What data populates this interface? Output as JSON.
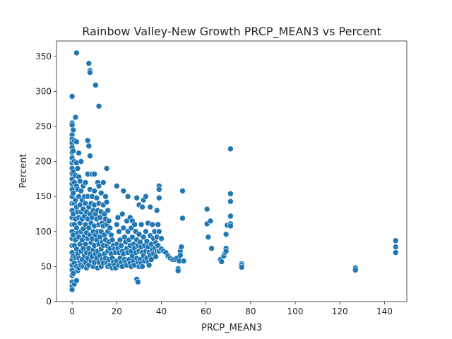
{
  "chart_data": {
    "type": "scatter",
    "title": "Rainbow Valley-New Growth PRCP_MEAN3 vs Percent",
    "xlabel": "PRCP_MEAN3",
    "ylabel": "Percent",
    "xlim": [
      -7,
      150
    ],
    "ylim": [
      0,
      372
    ],
    "xticks": [
      0,
      20,
      40,
      60,
      80,
      100,
      120,
      140
    ],
    "yticks": [
      0,
      50,
      100,
      150,
      200,
      250,
      300,
      350
    ],
    "grid": false,
    "marker_color": "#1f77b4",
    "marker_edge": "#ffffff",
    "points": [
      [
        2,
        355
      ],
      [
        7.5,
        340
      ],
      [
        8,
        330
      ],
      [
        8,
        327
      ],
      [
        10.5,
        309
      ],
      [
        0,
        293
      ],
      [
        12,
        279
      ],
      [
        1.5,
        263
      ],
      [
        0,
        255
      ],
      [
        0,
        252
      ],
      [
        0,
        238
      ],
      [
        0,
        232
      ],
      [
        0,
        226
      ],
      [
        0,
        220
      ],
      [
        0,
        213
      ],
      [
        0,
        205
      ],
      [
        0,
        198
      ],
      [
        0,
        190
      ],
      [
        0,
        183
      ],
      [
        0,
        175
      ],
      [
        0,
        168
      ],
      [
        0,
        160
      ],
      [
        0,
        150
      ],
      [
        0,
        140
      ],
      [
        0,
        130
      ],
      [
        0,
        120
      ],
      [
        0,
        110
      ],
      [
        0,
        100
      ],
      [
        0,
        90
      ],
      [
        0,
        80
      ],
      [
        0,
        70
      ],
      [
        0,
        60
      ],
      [
        0,
        52
      ],
      [
        0,
        45
      ],
      [
        0,
        37
      ],
      [
        0,
        28
      ],
      [
        0,
        22
      ],
      [
        0,
        17
      ],
      [
        0.5,
        245
      ],
      [
        0.5,
        215
      ],
      [
        0.5,
        185
      ],
      [
        0.5,
        155
      ],
      [
        0.5,
        125
      ],
      [
        0.5,
        95
      ],
      [
        0.5,
        65
      ],
      [
        0.5,
        40
      ],
      [
        1,
        230
      ],
      [
        1,
        200
      ],
      [
        1,
        170
      ],
      [
        1,
        140
      ],
      [
        1,
        110
      ],
      [
        1,
        80
      ],
      [
        1,
        55
      ],
      [
        1,
        25
      ],
      [
        1.5,
        180
      ],
      [
        1.5,
        145
      ],
      [
        1.5,
        118
      ],
      [
        1.5,
        88
      ],
      [
        1.5,
        63
      ],
      [
        2,
        228
      ],
      [
        2,
        198
      ],
      [
        2,
        165
      ],
      [
        2,
        135
      ],
      [
        2,
        105
      ],
      [
        2,
        75
      ],
      [
        2,
        50
      ],
      [
        2,
        30
      ],
      [
        2.5,
        190
      ],
      [
        2.5,
        160
      ],
      [
        2.5,
        128
      ],
      [
        2.5,
        98
      ],
      [
        2.5,
        68
      ],
      [
        2.5,
        44
      ],
      [
        3,
        212
      ],
      [
        3,
        178
      ],
      [
        3,
        150
      ],
      [
        3,
        120
      ],
      [
        3,
        92
      ],
      [
        3,
        62
      ],
      [
        3,
        48
      ],
      [
        3.5,
        172
      ],
      [
        3.5,
        138
      ],
      [
        3.5,
        112
      ],
      [
        3.5,
        82
      ],
      [
        3.5,
        57
      ],
      [
        4,
        200
      ],
      [
        4,
        158
      ],
      [
        4,
        128
      ],
      [
        4,
        100
      ],
      [
        4,
        72
      ],
      [
        4,
        52
      ],
      [
        4.5,
        145
      ],
      [
        4.5,
        118
      ],
      [
        4.5,
        88
      ],
      [
        4.5,
        60
      ],
      [
        5,
        165
      ],
      [
        5,
        132
      ],
      [
        5,
        104
      ],
      [
        5,
        76
      ],
      [
        5,
        50
      ],
      [
        5.5,
        150
      ],
      [
        5.5,
        122
      ],
      [
        5.5,
        94
      ],
      [
        5.5,
        66
      ],
      [
        6,
        170
      ],
      [
        6,
        140
      ],
      [
        6,
        110
      ],
      [
        6,
        82
      ],
      [
        6,
        56
      ],
      [
        6.5,
        128
      ],
      [
        6.5,
        98
      ],
      [
        6.5,
        70
      ],
      [
        6.5,
        48
      ],
      [
        7,
        230
      ],
      [
        7,
        182
      ],
      [
        7,
        150
      ],
      [
        7,
        118
      ],
      [
        7,
        90
      ],
      [
        7,
        62
      ],
      [
        7.5,
        222
      ],
      [
        7.5,
        135
      ],
      [
        7.5,
        105
      ],
      [
        7.5,
        76
      ],
      [
        7.5,
        52
      ],
      [
        8,
        208
      ],
      [
        8,
        160
      ],
      [
        8,
        125
      ],
      [
        8,
        95
      ],
      [
        8,
        68
      ],
      [
        8.5,
        140
      ],
      [
        8.5,
        112
      ],
      [
        8.5,
        84
      ],
      [
        8.5,
        58
      ],
      [
        9,
        182
      ],
      [
        9,
        150
      ],
      [
        9,
        120
      ],
      [
        9,
        90
      ],
      [
        9,
        64
      ],
      [
        9.5,
        130
      ],
      [
        9.5,
        100
      ],
      [
        9.5,
        74
      ],
      [
        9.5,
        50
      ],
      [
        10,
        182
      ],
      [
        10,
        158
      ],
      [
        10,
        138
      ],
      [
        10,
        108
      ],
      [
        10,
        80
      ],
      [
        10,
        56
      ],
      [
        10.5,
        125
      ],
      [
        10.5,
        95
      ],
      [
        10.5,
        68
      ],
      [
        11,
        148
      ],
      [
        11,
        118
      ],
      [
        11,
        88
      ],
      [
        11,
        62
      ],
      [
        11.5,
        170
      ],
      [
        11.5,
        130
      ],
      [
        11.5,
        100
      ],
      [
        11.5,
        72
      ],
      [
        11.5,
        48
      ],
      [
        12,
        165
      ],
      [
        12,
        140
      ],
      [
        12,
        110
      ],
      [
        12,
        82
      ],
      [
        12,
        56
      ],
      [
        12.5,
        120
      ],
      [
        12.5,
        92
      ],
      [
        12.5,
        66
      ],
      [
        13,
        155
      ],
      [
        13,
        128
      ],
      [
        13,
        100
      ],
      [
        13,
        75
      ],
      [
        13,
        50
      ],
      [
        13.5,
        112
      ],
      [
        13.5,
        85
      ],
      [
        13.5,
        60
      ],
      [
        14,
        170
      ],
      [
        14,
        138
      ],
      [
        14,
        108
      ],
      [
        14,
        80
      ],
      [
        14,
        55
      ],
      [
        14.5,
        125
      ],
      [
        14.5,
        95
      ],
      [
        14.5,
        68
      ],
      [
        15,
        150
      ],
      [
        15,
        118
      ],
      [
        15,
        88
      ],
      [
        15,
        62
      ],
      [
        15.5,
        190
      ],
      [
        15.5,
        142
      ],
      [
        15.5,
        110
      ],
      [
        15.5,
        80
      ],
      [
        15.5,
        55
      ],
      [
        16,
        130
      ],
      [
        16,
        100
      ],
      [
        16,
        72
      ],
      [
        16,
        50
      ],
      [
        16.5,
        115
      ],
      [
        16.5,
        85
      ],
      [
        16.5,
        60
      ],
      [
        17,
        105
      ],
      [
        17,
        76
      ],
      [
        17,
        52
      ],
      [
        17.5,
        95
      ],
      [
        17.5,
        68
      ],
      [
        18,
        88
      ],
      [
        18,
        62
      ],
      [
        18,
        48
      ],
      [
        18.5,
        80
      ],
      [
        18.5,
        56
      ],
      [
        19,
        75
      ],
      [
        19,
        52
      ],
      [
        19.5,
        70
      ],
      [
        19.5,
        48
      ],
      [
        20,
        165
      ],
      [
        20,
        110
      ],
      [
        20,
        82
      ],
      [
        20,
        58
      ],
      [
        20.5,
        120
      ],
      [
        20.5,
        76
      ],
      [
        21,
        100
      ],
      [
        21,
        70
      ],
      [
        21,
        52
      ],
      [
        21.5,
        88
      ],
      [
        21.5,
        62
      ],
      [
        22,
        80
      ],
      [
        22,
        56
      ],
      [
        22.5,
        125
      ],
      [
        22.5,
        72
      ],
      [
        22.5,
        50
      ],
      [
        23,
        158
      ],
      [
        23,
        105
      ],
      [
        23,
        68
      ],
      [
        23.5,
        92
      ],
      [
        23.5,
        60
      ],
      [
        24,
        85
      ],
      [
        24,
        56
      ],
      [
        24.5,
        115
      ],
      [
        24.5,
        76
      ],
      [
        24.5,
        52
      ],
      [
        25,
        150
      ],
      [
        25,
        100
      ],
      [
        25,
        70
      ],
      [
        25.5,
        88
      ],
      [
        25.5,
        60
      ],
      [
        26,
        120
      ],
      [
        26,
        80
      ],
      [
        26,
        55
      ],
      [
        26.5,
        105
      ],
      [
        26.5,
        72
      ],
      [
        26.5,
        50
      ],
      [
        27,
        115
      ],
      [
        27,
        92
      ],
      [
        27,
        65
      ],
      [
        27.5,
        82
      ],
      [
        27.5,
        58
      ],
      [
        28,
        110
      ],
      [
        28,
        76
      ],
      [
        28,
        52
      ],
      [
        28.5,
        100
      ],
      [
        28.5,
        70
      ],
      [
        29,
        148
      ],
      [
        29,
        88
      ],
      [
        29,
        62
      ],
      [
        29,
        32
      ],
      [
        29.5,
        28
      ],
      [
        29.5,
        80
      ],
      [
        29.5,
        56
      ],
      [
        30,
        138
      ],
      [
        30,
        96
      ],
      [
        30,
        72
      ],
      [
        30,
        50
      ],
      [
        30.5,
        85
      ],
      [
        30.5,
        60
      ],
      [
        31,
        110
      ],
      [
        31,
        78
      ],
      [
        31,
        55
      ],
      [
        31.5,
        135
      ],
      [
        31.5,
        70
      ],
      [
        31.5,
        50
      ],
      [
        32,
        145
      ],
      [
        32,
        92
      ],
      [
        32,
        65
      ],
      [
        32.5,
        80
      ],
      [
        32.5,
        58
      ],
      [
        33,
        150
      ],
      [
        33,
        100
      ],
      [
        33,
        72
      ],
      [
        33.5,
        86
      ],
      [
        33.5,
        62
      ],
      [
        34,
        112
      ],
      [
        34,
        78
      ],
      [
        34,
        56
      ],
      [
        34.5,
        70
      ],
      [
        34.5,
        52
      ],
      [
        35,
        135
      ],
      [
        35,
        94
      ],
      [
        35,
        66
      ],
      [
        35.5,
        82
      ],
      [
        35.5,
        60
      ],
      [
        36,
        110
      ],
      [
        36,
        74
      ],
      [
        36.5,
        90
      ],
      [
        36.5,
        68
      ],
      [
        37,
        100
      ],
      [
        37,
        76
      ],
      [
        37.5,
        84
      ],
      [
        37.5,
        64
      ],
      [
        38,
        130
      ],
      [
        38,
        92
      ],
      [
        38,
        72
      ],
      [
        38.5,
        110
      ],
      [
        38.5,
        80
      ],
      [
        39,
        165
      ],
      [
        39,
        160
      ],
      [
        39,
        148
      ],
      [
        39,
        100
      ],
      [
        39,
        72
      ],
      [
        40,
        90
      ],
      [
        40,
        75
      ],
      [
        41,
        72
      ],
      [
        42,
        70
      ],
      [
        43,
        65
      ],
      [
        44,
        62
      ],
      [
        45,
        60
      ],
      [
        46,
        60
      ],
      [
        47,
        62
      ],
      [
        47.5,
        47
      ],
      [
        47.5,
        44
      ],
      [
        48,
        58
      ],
      [
        48.5,
        72
      ],
      [
        48.5,
        66
      ],
      [
        49,
        78
      ],
      [
        49.5,
        119
      ],
      [
        49.5,
        158
      ],
      [
        50,
        58
      ],
      [
        60.5,
        132
      ],
      [
        60.5,
        111
      ],
      [
        61,
        92
      ],
      [
        62,
        115
      ],
      [
        62.5,
        76
      ],
      [
        66.5,
        60
      ],
      [
        67,
        57
      ],
      [
        68,
        65
      ],
      [
        68.5,
        70
      ],
      [
        69,
        76
      ],
      [
        69,
        72
      ],
      [
        69,
        96
      ],
      [
        69.5,
        109
      ],
      [
        71,
        218
      ],
      [
        71,
        154
      ],
      [
        71,
        143
      ],
      [
        71,
        122
      ],
      [
        71,
        111
      ],
      [
        71,
        108
      ],
      [
        76,
        54
      ],
      [
        76,
        52
      ],
      [
        76,
        49
      ],
      [
        127,
        48
      ],
      [
        127,
        45
      ],
      [
        145,
        87
      ],
      [
        145,
        78
      ],
      [
        145,
        70
      ]
    ]
  }
}
